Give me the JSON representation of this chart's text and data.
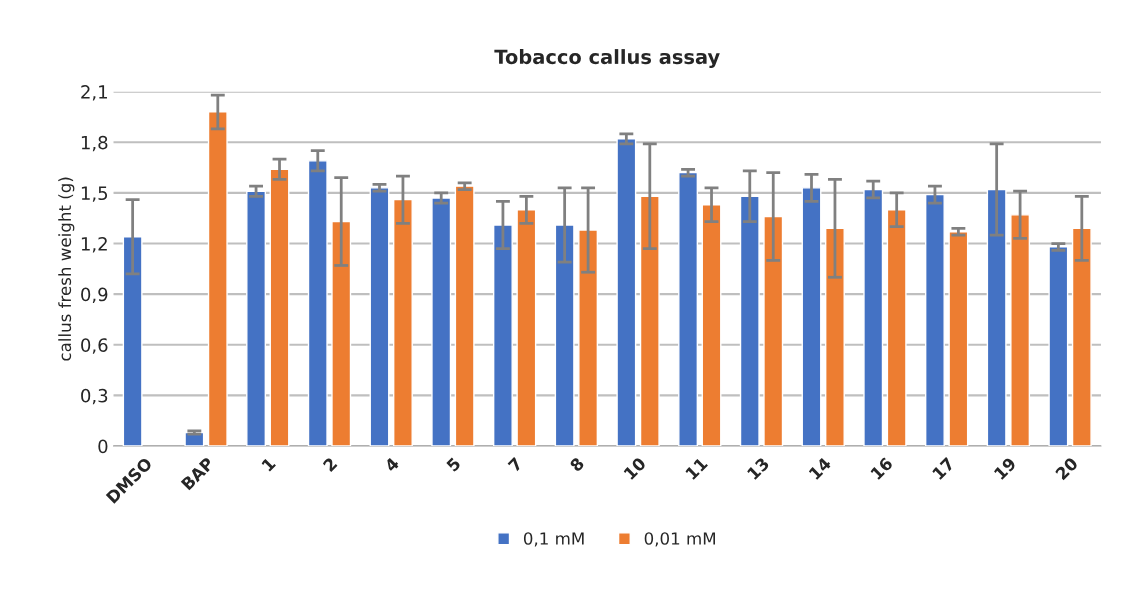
{
  "chart_data": {
    "type": "bar",
    "title": "Tobacco callus assay",
    "ylabel": "callus fresh weight (g)",
    "categories": [
      "DMSO",
      "BAP",
      "1",
      "2",
      "4",
      "5",
      "7",
      "8",
      "10",
      "11",
      "13",
      "14",
      "16",
      "17",
      "19",
      "20"
    ],
    "series": [
      {
        "name": "0,1 mM",
        "color": "#4472c4",
        "values": [
          1.24,
          0.08,
          1.51,
          1.69,
          1.53,
          1.47,
          1.31,
          1.31,
          1.82,
          1.62,
          1.48,
          1.53,
          1.52,
          1.49,
          1.52,
          1.18
        ],
        "errors": [
          0.22,
          0.01,
          0.03,
          0.06,
          0.02,
          0.03,
          0.14,
          0.22,
          0.03,
          0.02,
          0.15,
          0.08,
          0.05,
          0.05,
          0.27,
          0.02
        ]
      },
      {
        "name": "0,01 mM",
        "color": "#ed7d31",
        "values": [
          null,
          1.98,
          1.64,
          1.33,
          1.46,
          1.54,
          1.4,
          1.28,
          1.48,
          1.43,
          1.36,
          1.29,
          1.4,
          1.27,
          1.37,
          1.29
        ],
        "errors": [
          null,
          0.1,
          0.06,
          0.26,
          0.14,
          0.02,
          0.08,
          0.25,
          0.31,
          0.1,
          0.26,
          0.29,
          0.1,
          0.02,
          0.14,
          0.19
        ]
      }
    ],
    "ylim": [
      0,
      2.1
    ],
    "yticks": [
      0,
      {
        "value": 0.3,
        "label": "0,3"
      },
      {
        "value": 0.6,
        "label": "0,6"
      },
      {
        "value": 0.9,
        "label": "0,9"
      },
      {
        "value": 1.2,
        "label": "1,2"
      },
      {
        "value": 1.5,
        "label": "1,5"
      },
      {
        "value": 1.8,
        "label": "1,8"
      },
      {
        "value": 2.1,
        "label": "2,1"
      }
    ],
    "grid": "y",
    "legend": "bottom"
  }
}
